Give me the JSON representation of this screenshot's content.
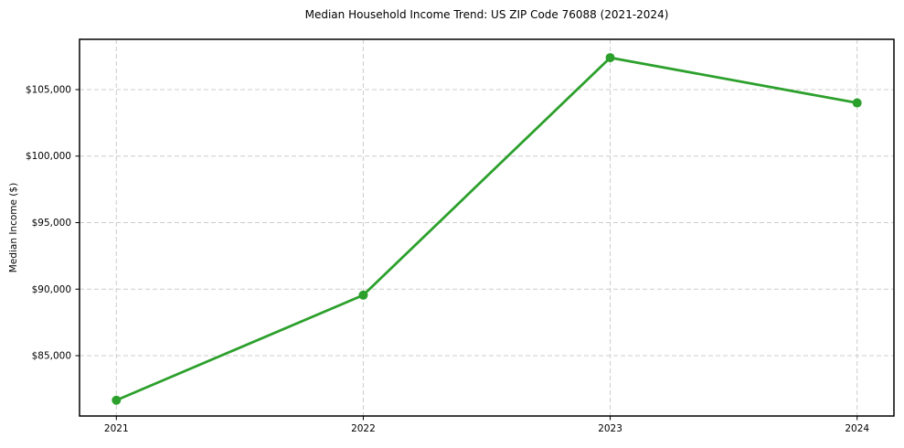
{
  "figure": {
    "background_color": "#ffffff"
  },
  "chart_data": {
    "type": "line",
    "title": "Median Household Income Trend: US ZIP Code 76088 (2021-2024)",
    "xlabel": "",
    "ylabel": "Median Income ($)",
    "categories": [
      "2021",
      "2022",
      "2023",
      "2024"
    ],
    "series": [
      {
        "name": "Median Household Income",
        "values": [
          81650,
          89550,
          107400,
          104000
        ],
        "color": "#2ca02c",
        "marker": "circle"
      }
    ],
    "ylim": [
      80464,
      108780
    ],
    "yticks": [
      {
        "value": 85000,
        "label": "$85,000"
      },
      {
        "value": 90000,
        "label": "$90,000"
      },
      {
        "value": 95000,
        "label": "$95,000"
      },
      {
        "value": 100000,
        "label": "$100,000"
      },
      {
        "value": 105000,
        "label": "$105,000"
      }
    ],
    "grid": "dashed",
    "grid_color": "#cccccc",
    "axis_color": "#000000",
    "legend_position": "none"
  }
}
